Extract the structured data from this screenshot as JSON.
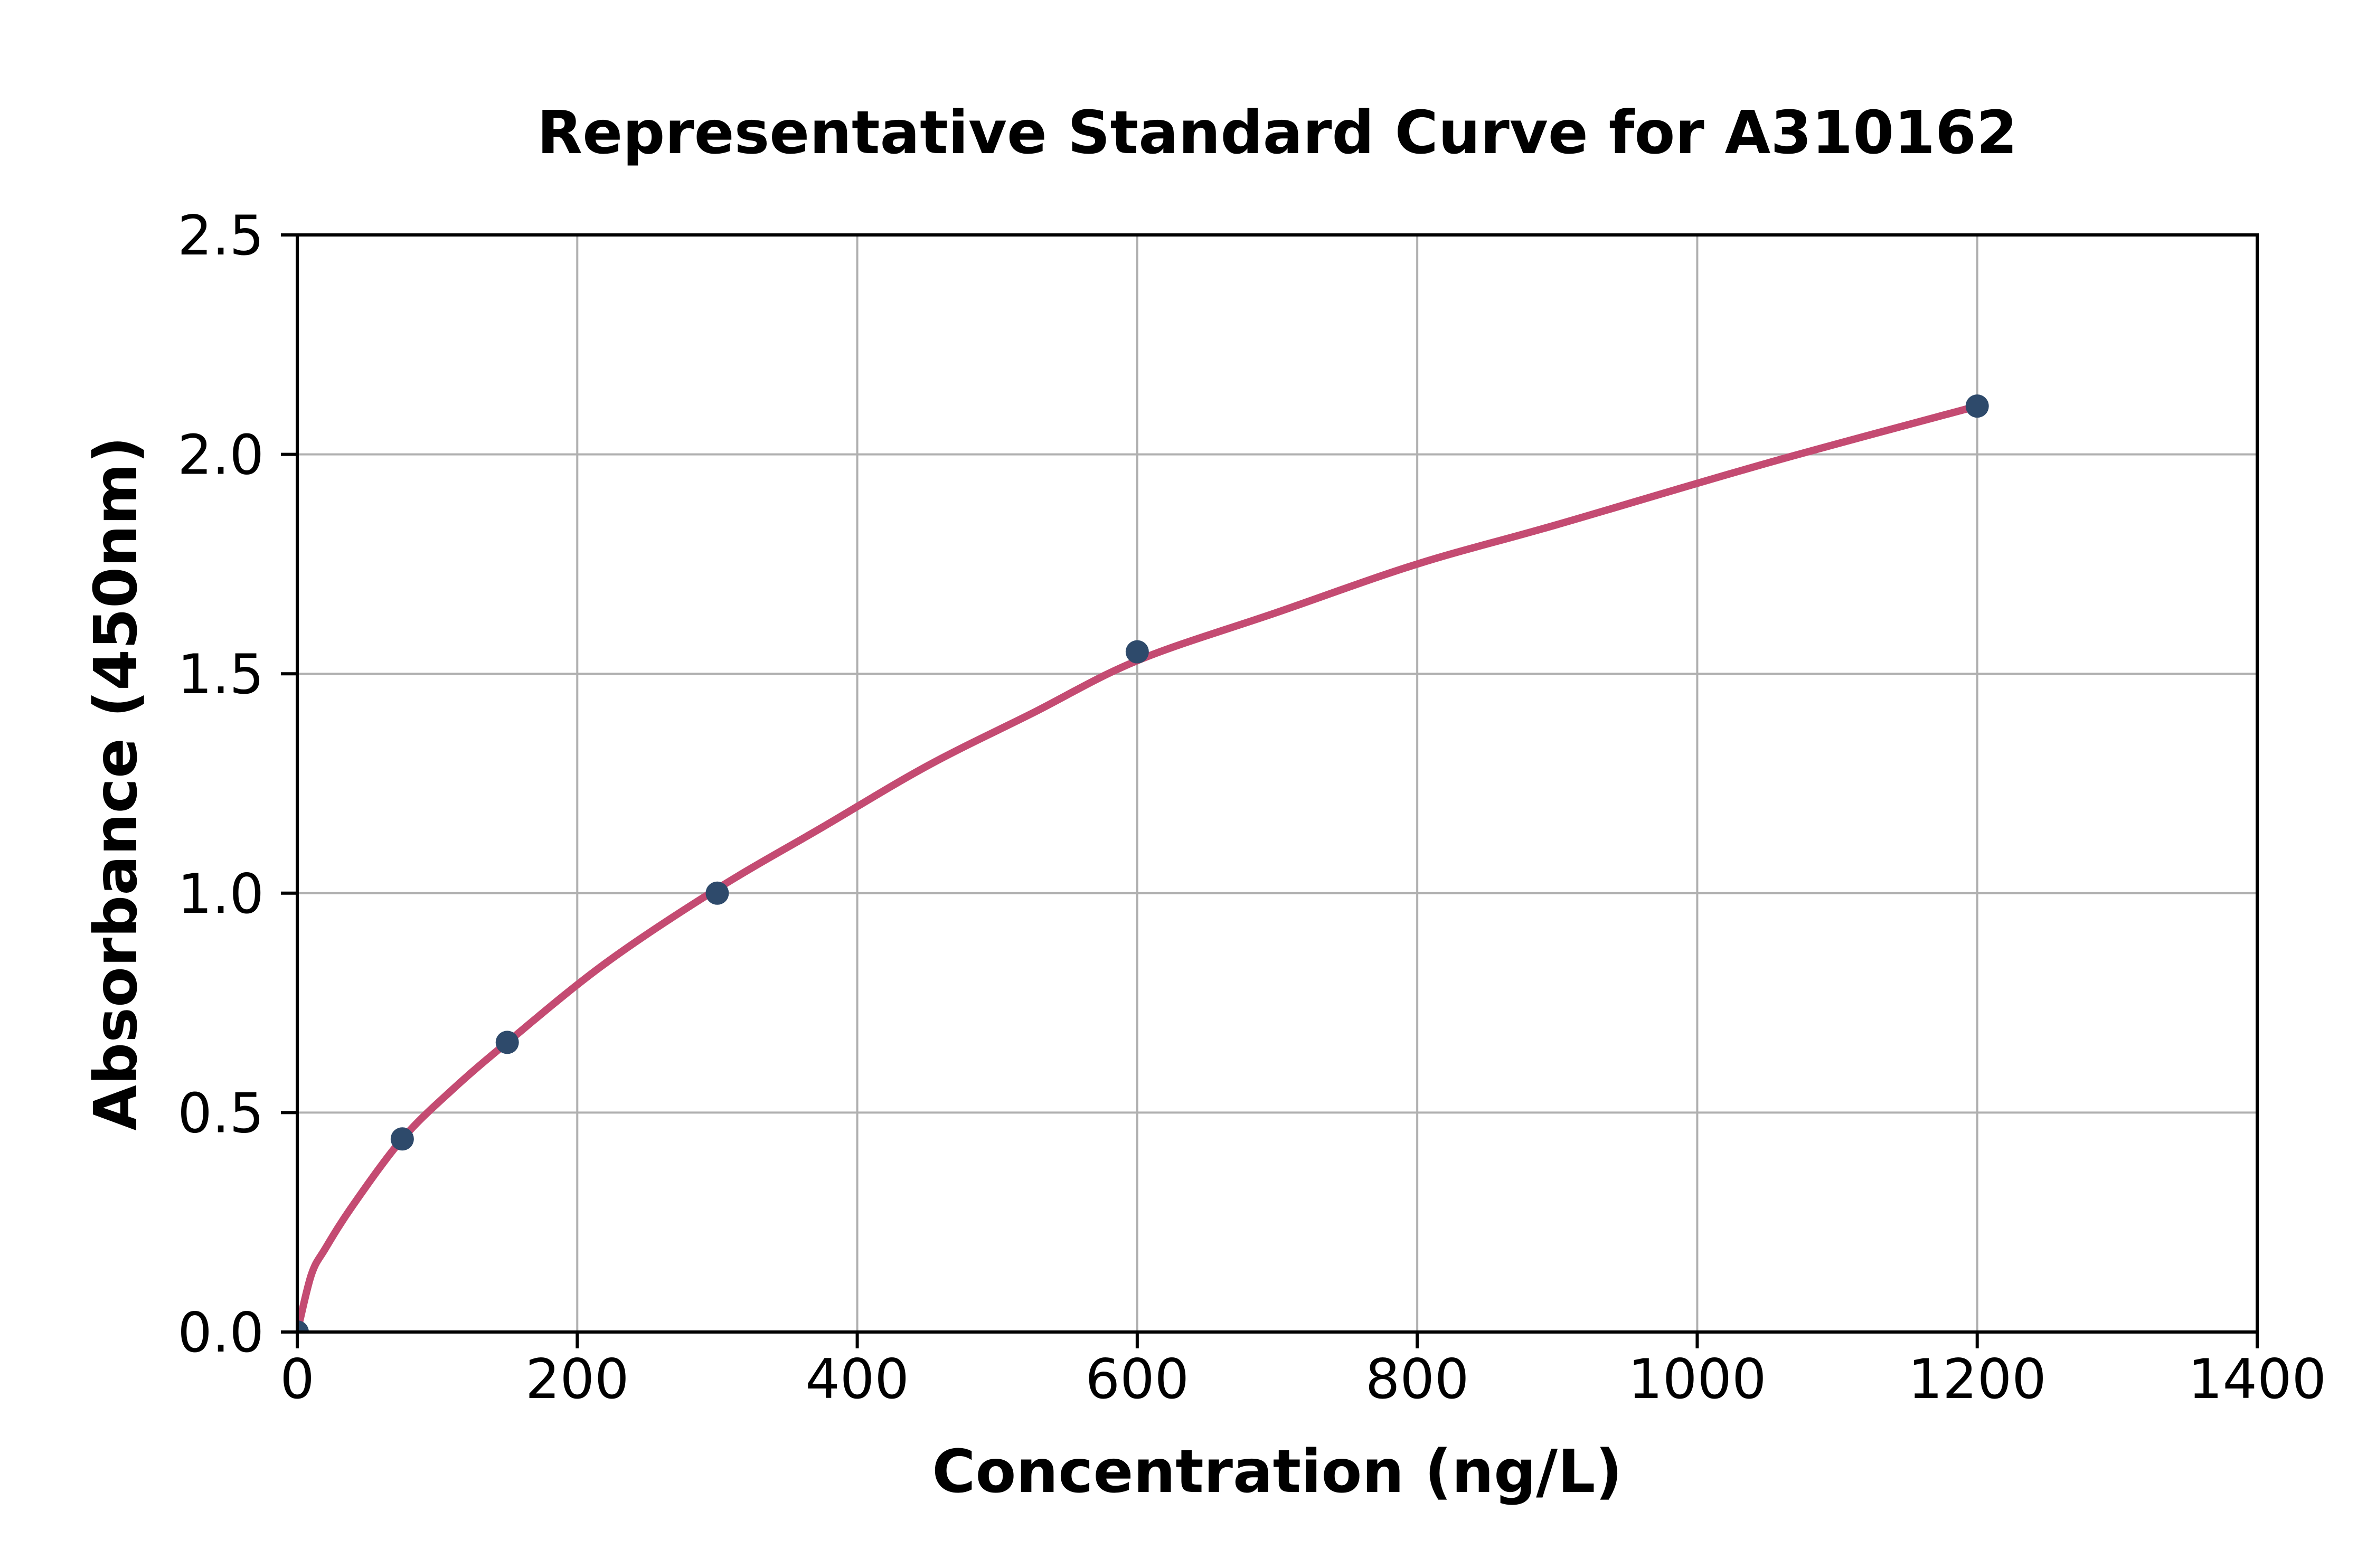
{
  "chart_data": {
    "type": "scatter",
    "title": "Representative Standard Curve for A310162",
    "xlabel": "Concentration (ng/L)",
    "ylabel": "Absorbance (450nm)",
    "xlim": [
      0,
      1400
    ],
    "ylim": [
      0.0,
      2.5
    ],
    "grid": true,
    "legend": "none",
    "x_ticks": [
      0,
      200,
      400,
      600,
      800,
      1000,
      1200,
      1400
    ],
    "x_tick_labels": [
      "0",
      "200",
      "400",
      "600",
      "800",
      "1000",
      "1200",
      "1400"
    ],
    "y_ticks": [
      0.0,
      0.5,
      1.0,
      1.5,
      2.0,
      2.5
    ],
    "y_tick_labels": [
      "0.0",
      "0.5",
      "1.0",
      "1.5",
      "2.0",
      "2.5"
    ],
    "series": [
      {
        "name": "standard-points",
        "type": "scatter",
        "points": [
          [
            0,
            0.0
          ],
          [
            75,
            0.44
          ],
          [
            150,
            0.66
          ],
          [
            300,
            1.0
          ],
          [
            600,
            1.55
          ],
          [
            1200,
            2.11
          ]
        ]
      },
      {
        "name": "fitted-curve",
        "type": "line",
        "points": [
          [
            0,
            0.0
          ],
          [
            10,
            0.13
          ],
          [
            20,
            0.19
          ],
          [
            40,
            0.29
          ],
          [
            75,
            0.44
          ],
          [
            110,
            0.55
          ],
          [
            150,
            0.66
          ],
          [
            220,
            0.84
          ],
          [
            300,
            1.01
          ],
          [
            375,
            1.15
          ],
          [
            450,
            1.29
          ],
          [
            525,
            1.41
          ],
          [
            600,
            1.53
          ],
          [
            700,
            1.64
          ],
          [
            800,
            1.75
          ],
          [
            900,
            1.84
          ],
          [
            1050,
            1.98
          ],
          [
            1200,
            2.11
          ]
        ]
      }
    ],
    "colors": {
      "curve": "#c44b72",
      "point": "#2e4a6b",
      "grid": "#b0b0b0",
      "axis": "#000000",
      "background": "#ffffff"
    }
  }
}
